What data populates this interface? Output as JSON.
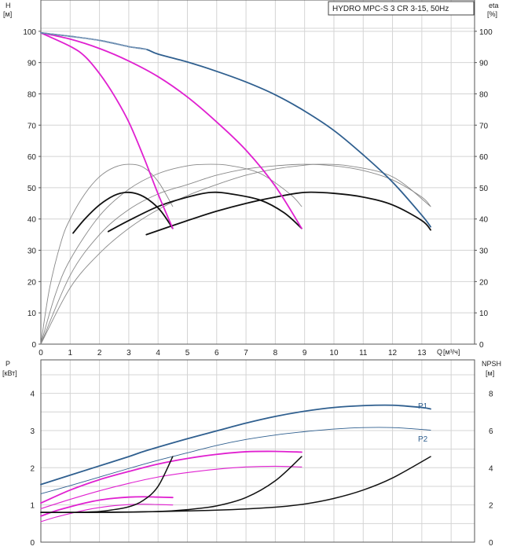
{
  "chart_data": [
    {
      "type": "line",
      "title": "HYDRO MPC-S 3 CR 3-15, 50Hz",
      "ylabel": "H",
      "yunit": "[м]",
      "y2label": "eta",
      "y2unit": "[%]",
      "xlabel": "Q",
      "xunit": "[м³/ч]",
      "xlim": [
        0,
        14.8
      ],
      "ylim": [
        0,
        110
      ],
      "y2lim": [
        0,
        110
      ],
      "grid": true,
      "xticks": [
        "0",
        "1",
        "2",
        "3",
        "4",
        "5",
        "6",
        "7",
        "8",
        "9",
        "10",
        "11",
        "12",
        "13"
      ],
      "yticks": [
        "0",
        "10",
        "20",
        "30",
        "40",
        "50",
        "60",
        "70",
        "80",
        "90",
        "100"
      ],
      "y2ticks": [
        "0",
        "10",
        "20",
        "30",
        "40",
        "50",
        "60",
        "70",
        "80",
        "90",
        "100"
      ],
      "colors": {
        "h_curve": "#2f5f8f",
        "h_partial": "#e020d0",
        "eta_thin": "#888888",
        "eta_thick": "#111111"
      },
      "series": [
        {
          "kind": "H",
          "points": [
            [
              0,
              99.5
            ],
            [
              1,
              98.4
            ],
            [
              2,
              97.1
            ],
            [
              3,
              95.1
            ],
            [
              3.6,
              94.2
            ],
            [
              4,
              92.7
            ],
            [
              5,
              90.2
            ],
            [
              6,
              87.2
            ],
            [
              7,
              83.8
            ],
            [
              8,
              79.7
            ],
            [
              9,
              74.5
            ],
            [
              10,
              68.3
            ],
            [
              11,
              60.5
            ],
            [
              12,
              51.8
            ],
            [
              13,
              41.2
            ],
            [
              13.3,
              37.5
            ]
          ]
        },
        {
          "kind": "H-partial",
          "points": [
            [
              0,
              99.5
            ],
            [
              1,
              95.2
            ],
            [
              1.5,
              92
            ],
            [
              2,
              86.5
            ],
            [
              2.5,
              79.5
            ],
            [
              3,
              71
            ],
            [
              3.5,
              60
            ],
            [
              4,
              48
            ],
            [
              4.5,
              37
            ]
          ]
        },
        {
          "kind": "H-partial",
          "points": [
            [
              0,
              99.5
            ],
            [
              1,
              97.5
            ],
            [
              2,
              94.5
            ],
            [
              3,
              90.5
            ],
            [
              4,
              85.5
            ],
            [
              5,
              79
            ],
            [
              6,
              71
            ],
            [
              7,
              62
            ],
            [
              8,
              50.5
            ],
            [
              8.9,
              37
            ]
          ]
        },
        {
          "kind": "eta",
          "points": [
            [
              1.1,
              35.5
            ],
            [
              1.5,
              40
            ],
            [
              2,
              44.5
            ],
            [
              2.5,
              47.5
            ],
            [
              2.9,
              48.5
            ],
            [
              3.3,
              48
            ],
            [
              3.7,
              46
            ],
            [
              4.1,
              42.5
            ],
            [
              4.5,
              37
            ]
          ]
        },
        {
          "kind": "eta",
          "points": [
            [
              2.3,
              36
            ],
            [
              3,
              39.5
            ],
            [
              4,
              44
            ],
            [
              5,
              47
            ],
            [
              5.8,
              48.5
            ],
            [
              6.5,
              48
            ],
            [
              7.5,
              46
            ],
            [
              8.3,
              42
            ],
            [
              8.9,
              37
            ]
          ]
        },
        {
          "kind": "eta",
          "points": [
            [
              3.6,
              35
            ],
            [
              5,
              39.5
            ],
            [
              6,
              42.5
            ],
            [
              7,
              45
            ],
            [
              8,
              47
            ],
            [
              9,
              48.5
            ],
            [
              10,
              48.2
            ],
            [
              11,
              47
            ],
            [
              12,
              44.5
            ],
            [
              13,
              39.5
            ],
            [
              13.3,
              36.5
            ]
          ]
        },
        {
          "kind": "eta-thin",
          "points": [
            [
              0,
              0
            ],
            [
              0.3,
              18
            ],
            [
              0.7,
              33
            ],
            [
              1,
              40
            ],
            [
              1.5,
              48
            ],
            [
              2,
              53.5
            ],
            [
              2.5,
              56.5
            ],
            [
              3,
              57.5
            ],
            [
              3.5,
              56.5
            ],
            [
              4,
              52
            ],
            [
              4.5,
              44
            ]
          ]
        },
        {
          "kind": "eta-thin",
          "points": [
            [
              0,
              0
            ],
            [
              0.5,
              16
            ],
            [
              1,
              27
            ],
            [
              2,
              41
            ],
            [
              3,
              49.5
            ],
            [
              4,
              54.5
            ],
            [
              5,
              57
            ],
            [
              5.8,
              57.5
            ],
            [
              6.5,
              57
            ],
            [
              7.5,
              54.5
            ],
            [
              8.5,
              48
            ],
            [
              8.9,
              44
            ]
          ]
        },
        {
          "kind": "eta-thin",
          "points": [
            [
              0,
              0
            ],
            [
              1,
              22
            ],
            [
              2,
              35
            ],
            [
              3,
              43
            ],
            [
              4,
              48
            ],
            [
              5,
              51
            ],
            [
              6,
              54
            ],
            [
              7,
              56
            ],
            [
              8,
              57
            ],
            [
              9,
              57.5
            ],
            [
              10,
              57
            ],
            [
              11,
              55.5
            ],
            [
              12,
              52.5
            ],
            [
              13,
              47
            ],
            [
              13.3,
              44
            ]
          ]
        },
        {
          "kind": "eta-thin",
          "points": [
            [
              0,
              0
            ],
            [
              1,
              18
            ],
            [
              2,
              29
            ],
            [
              3,
              37
            ],
            [
              4,
              43
            ],
            [
              5,
              47.5
            ],
            [
              6,
              51
            ],
            [
              7,
              54
            ],
            [
              8,
              56
            ],
            [
              9,
              57.2
            ],
            [
              9.5,
              57.5
            ],
            [
              10.5,
              57
            ],
            [
              12,
              53.5
            ],
            [
              13.3,
              44
            ]
          ]
        }
      ]
    },
    {
      "type": "line",
      "ylabel": "P",
      "yunit": "[кВт]",
      "y2label": "NPSH",
      "y2unit": "[м]",
      "xlim": [
        0,
        14.8
      ],
      "ylim": [
        0,
        4.9
      ],
      "y2lim": [
        0,
        9.8
      ],
      "grid": true,
      "yticks": [
        "0",
        "1",
        "2",
        "3",
        "4"
      ],
      "y2ticks": [
        "0",
        "2",
        "4",
        "6",
        "8"
      ],
      "colors": {
        "p1": "#2f5f8f",
        "p_partial": "#e020d0",
        "npsh": "#111111"
      },
      "series": [
        {
          "name": "P1",
          "kind": "P1",
          "points": [
            [
              0,
              1.55
            ],
            [
              1,
              1.8
            ],
            [
              2,
              2.05
            ],
            [
              3,
              2.3
            ],
            [
              3.6,
              2.46
            ],
            [
              5,
              2.78
            ],
            [
              6,
              2.99
            ],
            [
              7,
              3.2
            ],
            [
              8,
              3.38
            ],
            [
              9,
              3.52
            ],
            [
              10,
              3.62
            ],
            [
              11,
              3.67
            ],
            [
              12,
              3.68
            ],
            [
              13,
              3.62
            ],
            [
              13.3,
              3.58
            ]
          ]
        },
        {
          "name": "P2",
          "kind": "P2",
          "points": [
            [
              0,
              1.3
            ],
            [
              1,
              1.52
            ],
            [
              2,
              1.75
            ],
            [
              3,
              1.98
            ],
            [
              4,
              2.2
            ],
            [
              5,
              2.4
            ],
            [
              6,
              2.6
            ],
            [
              7,
              2.76
            ],
            [
              8,
              2.88
            ],
            [
              9,
              2.97
            ],
            [
              10,
              3.04
            ],
            [
              11,
              3.08
            ],
            [
              12,
              3.08
            ],
            [
              13,
              3.03
            ],
            [
              13.3,
              3.01
            ]
          ]
        },
        {
          "kind": "P-partial",
          "points": [
            [
              0,
              1.05
            ],
            [
              1,
              1.4
            ],
            [
              2,
              1.68
            ],
            [
              3,
              1.9
            ],
            [
              4,
              2.1
            ],
            [
              5,
              2.25
            ],
            [
              6,
              2.36
            ],
            [
              7,
              2.43
            ],
            [
              8,
              2.44
            ],
            [
              8.9,
              2.42
            ]
          ]
        },
        {
          "kind": "P-partial",
          "points": [
            [
              0,
              0.9
            ],
            [
              1,
              1.15
            ],
            [
              2,
              1.38
            ],
            [
              3,
              1.58
            ],
            [
              4,
              1.75
            ],
            [
              5,
              1.87
            ],
            [
              6,
              1.96
            ],
            [
              7,
              2.02
            ],
            [
              8,
              2.04
            ],
            [
              8.9,
              2.02
            ]
          ]
        },
        {
          "kind": "P-partial",
          "points": [
            [
              0,
              0.7
            ],
            [
              0.5,
              0.84
            ],
            [
              1,
              0.95
            ],
            [
              1.5,
              1.05
            ],
            [
              2,
              1.13
            ],
            [
              2.5,
              1.18
            ],
            [
              3,
              1.21
            ],
            [
              3.5,
              1.22
            ],
            [
              4,
              1.21
            ],
            [
              4.5,
              1.2
            ]
          ]
        },
        {
          "kind": "P-partial",
          "points": [
            [
              0,
              0.55
            ],
            [
              0.5,
              0.67
            ],
            [
              1,
              0.77
            ],
            [
              1.5,
              0.86
            ],
            [
              2,
              0.93
            ],
            [
              2.5,
              0.98
            ],
            [
              3,
              1.01
            ],
            [
              3.5,
              1.02
            ],
            [
              4,
              1.01
            ],
            [
              4.5,
              1.0
            ]
          ]
        },
        {
          "kind": "NPSH",
          "points": [
            [
              0,
              1.6
            ],
            [
              1,
              1.6
            ],
            [
              2,
              1.65
            ],
            [
              2.5,
              1.75
            ],
            [
              3,
              1.9
            ],
            [
              3.5,
              2.25
            ],
            [
              4,
              3.0
            ],
            [
              4.5,
              4.6
            ]
          ]
        },
        {
          "kind": "NPSH",
          "points": [
            [
              0,
              1.6
            ],
            [
              2,
              1.6
            ],
            [
              4,
              1.65
            ],
            [
              5,
              1.75
            ],
            [
              6,
              1.95
            ],
            [
              7,
              2.4
            ],
            [
              8,
              3.3
            ],
            [
              8.9,
              4.6
            ]
          ]
        },
        {
          "kind": "NPSH",
          "points": [
            [
              0,
              1.6
            ],
            [
              3,
              1.62
            ],
            [
              6,
              1.72
            ],
            [
              8,
              1.88
            ],
            [
              9,
              2.05
            ],
            [
              10,
              2.35
            ],
            [
              11,
              2.8
            ],
            [
              12,
              3.45
            ],
            [
              13.3,
              4.6
            ]
          ]
        }
      ]
    }
  ]
}
